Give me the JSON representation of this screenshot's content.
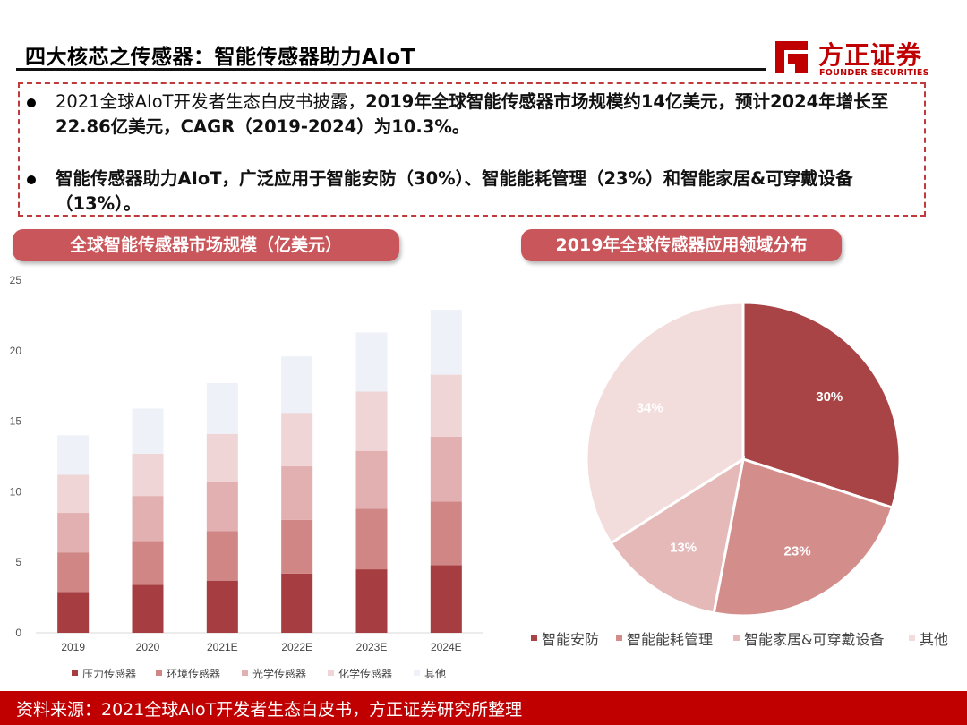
{
  "header": {
    "title": "四大核芯之传感器：智能传感器助力AIoT"
  },
  "logo": {
    "cn": "方正证券",
    "en": "FOUNDER SECURITIES",
    "color": "#c00000"
  },
  "summary": {
    "bullet1_plain": "2021全球AIoT开发者生态白皮书披露，",
    "bullet1_bold": "2019年全球智能传感器市场规模约14亿美元，预计2024年增长至22.86亿美元，CAGR（2019-2024）为10.3%。",
    "bullet2_bold": "智能传感器助力AIoT，广泛应用于智能安防（30%）、智能能耗管理（23%）和智能家居&可穿戴设备（13%）。"
  },
  "bar_section": {
    "title": "全球智能传感器市场规模（亿美元）"
  },
  "pie_section": {
    "title": "2019年全球传感器应用领域分布"
  },
  "chart_data": [
    {
      "type": "bar",
      "stacked": true,
      "categories": [
        "2019",
        "2020",
        "2021E",
        "2022E",
        "2023E",
        "2024E"
      ],
      "series": [
        {
          "name": "压力传感器",
          "color": "#a63d40",
          "values": [
            2.9,
            3.4,
            3.7,
            4.2,
            4.5,
            4.8
          ]
        },
        {
          "name": "环境传感器",
          "color": "#cf8685",
          "values": [
            2.8,
            3.1,
            3.5,
            3.8,
            4.3,
            4.5
          ]
        },
        {
          "name": "光学传感器",
          "color": "#e2b0b0",
          "values": [
            2.8,
            3.2,
            3.5,
            3.8,
            4.1,
            4.6
          ]
        },
        {
          "name": "化学传感器",
          "color": "#efd5d5",
          "values": [
            2.7,
            3.0,
            3.4,
            3.8,
            4.2,
            4.4
          ]
        },
        {
          "name": "其他",
          "color": "#eef2f8",
          "values": [
            2.8,
            3.2,
            3.6,
            4.0,
            4.2,
            4.6
          ]
        }
      ],
      "ylim": [
        0,
        25
      ],
      "yticks": [
        0,
        5,
        10,
        15,
        20,
        25
      ],
      "legend": "bottom",
      "grid": false
    },
    {
      "type": "pie",
      "labels": [
        "智能安防",
        "智能能耗管理",
        "智能家居&可穿戴设备",
        "其他"
      ],
      "values": [
        30,
        23,
        13,
        34
      ],
      "value_labels": [
        "30%",
        "23%",
        "13%",
        "34%"
      ],
      "colors": [
        "#a94446",
        "#d38e8c",
        "#e6b9b9",
        "#f3dcdc"
      ],
      "label_colors": [
        "#ffffff",
        "#ffffff",
        "#ffffff",
        "#ffffff"
      ],
      "legend": "bottom"
    }
  ],
  "footer": {
    "source": "资料来源：2021全球AIoT开发者生态白皮书，方正证券研究所整理"
  }
}
